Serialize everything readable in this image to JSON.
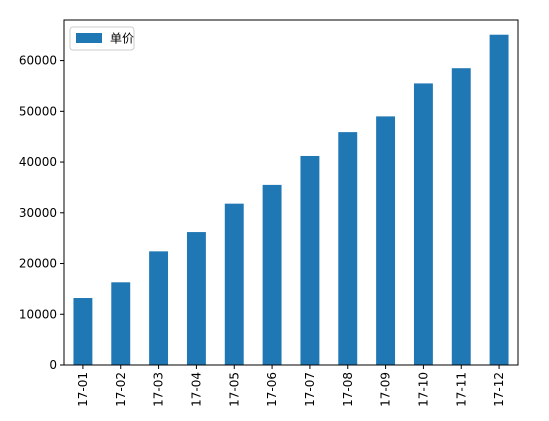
{
  "chart_data": {
    "type": "bar",
    "categories": [
      "2017-01",
      "2017-02",
      "2017-03",
      "2017-04",
      "2017-05",
      "2017-06",
      "2017-07",
      "2017-08",
      "2017-09",
      "2017-10",
      "2017-11",
      "2017-12"
    ],
    "category_labels": [
      "17-01",
      "17-02",
      "17-03",
      "17-04",
      "17-05",
      "17-06",
      "17-07",
      "17-08",
      "17-09",
      "17-10",
      "17-11",
      "17-12"
    ],
    "series": [
      {
        "name": "单价",
        "color": "#1f77b4",
        "values": [
          13200,
          16300,
          22400,
          26200,
          31800,
          35500,
          41200,
          45900,
          49000,
          55500,
          58500,
          65100
        ]
      }
    ],
    "ylim": [
      0,
      68000
    ],
    "yticks": [
      0,
      10000,
      20000,
      30000,
      40000,
      50000,
      60000
    ],
    "xlabel": "",
    "ylabel": "",
    "title": "",
    "grid": false,
    "legend_position": "top-left",
    "x_tick_rotation": 90
  }
}
